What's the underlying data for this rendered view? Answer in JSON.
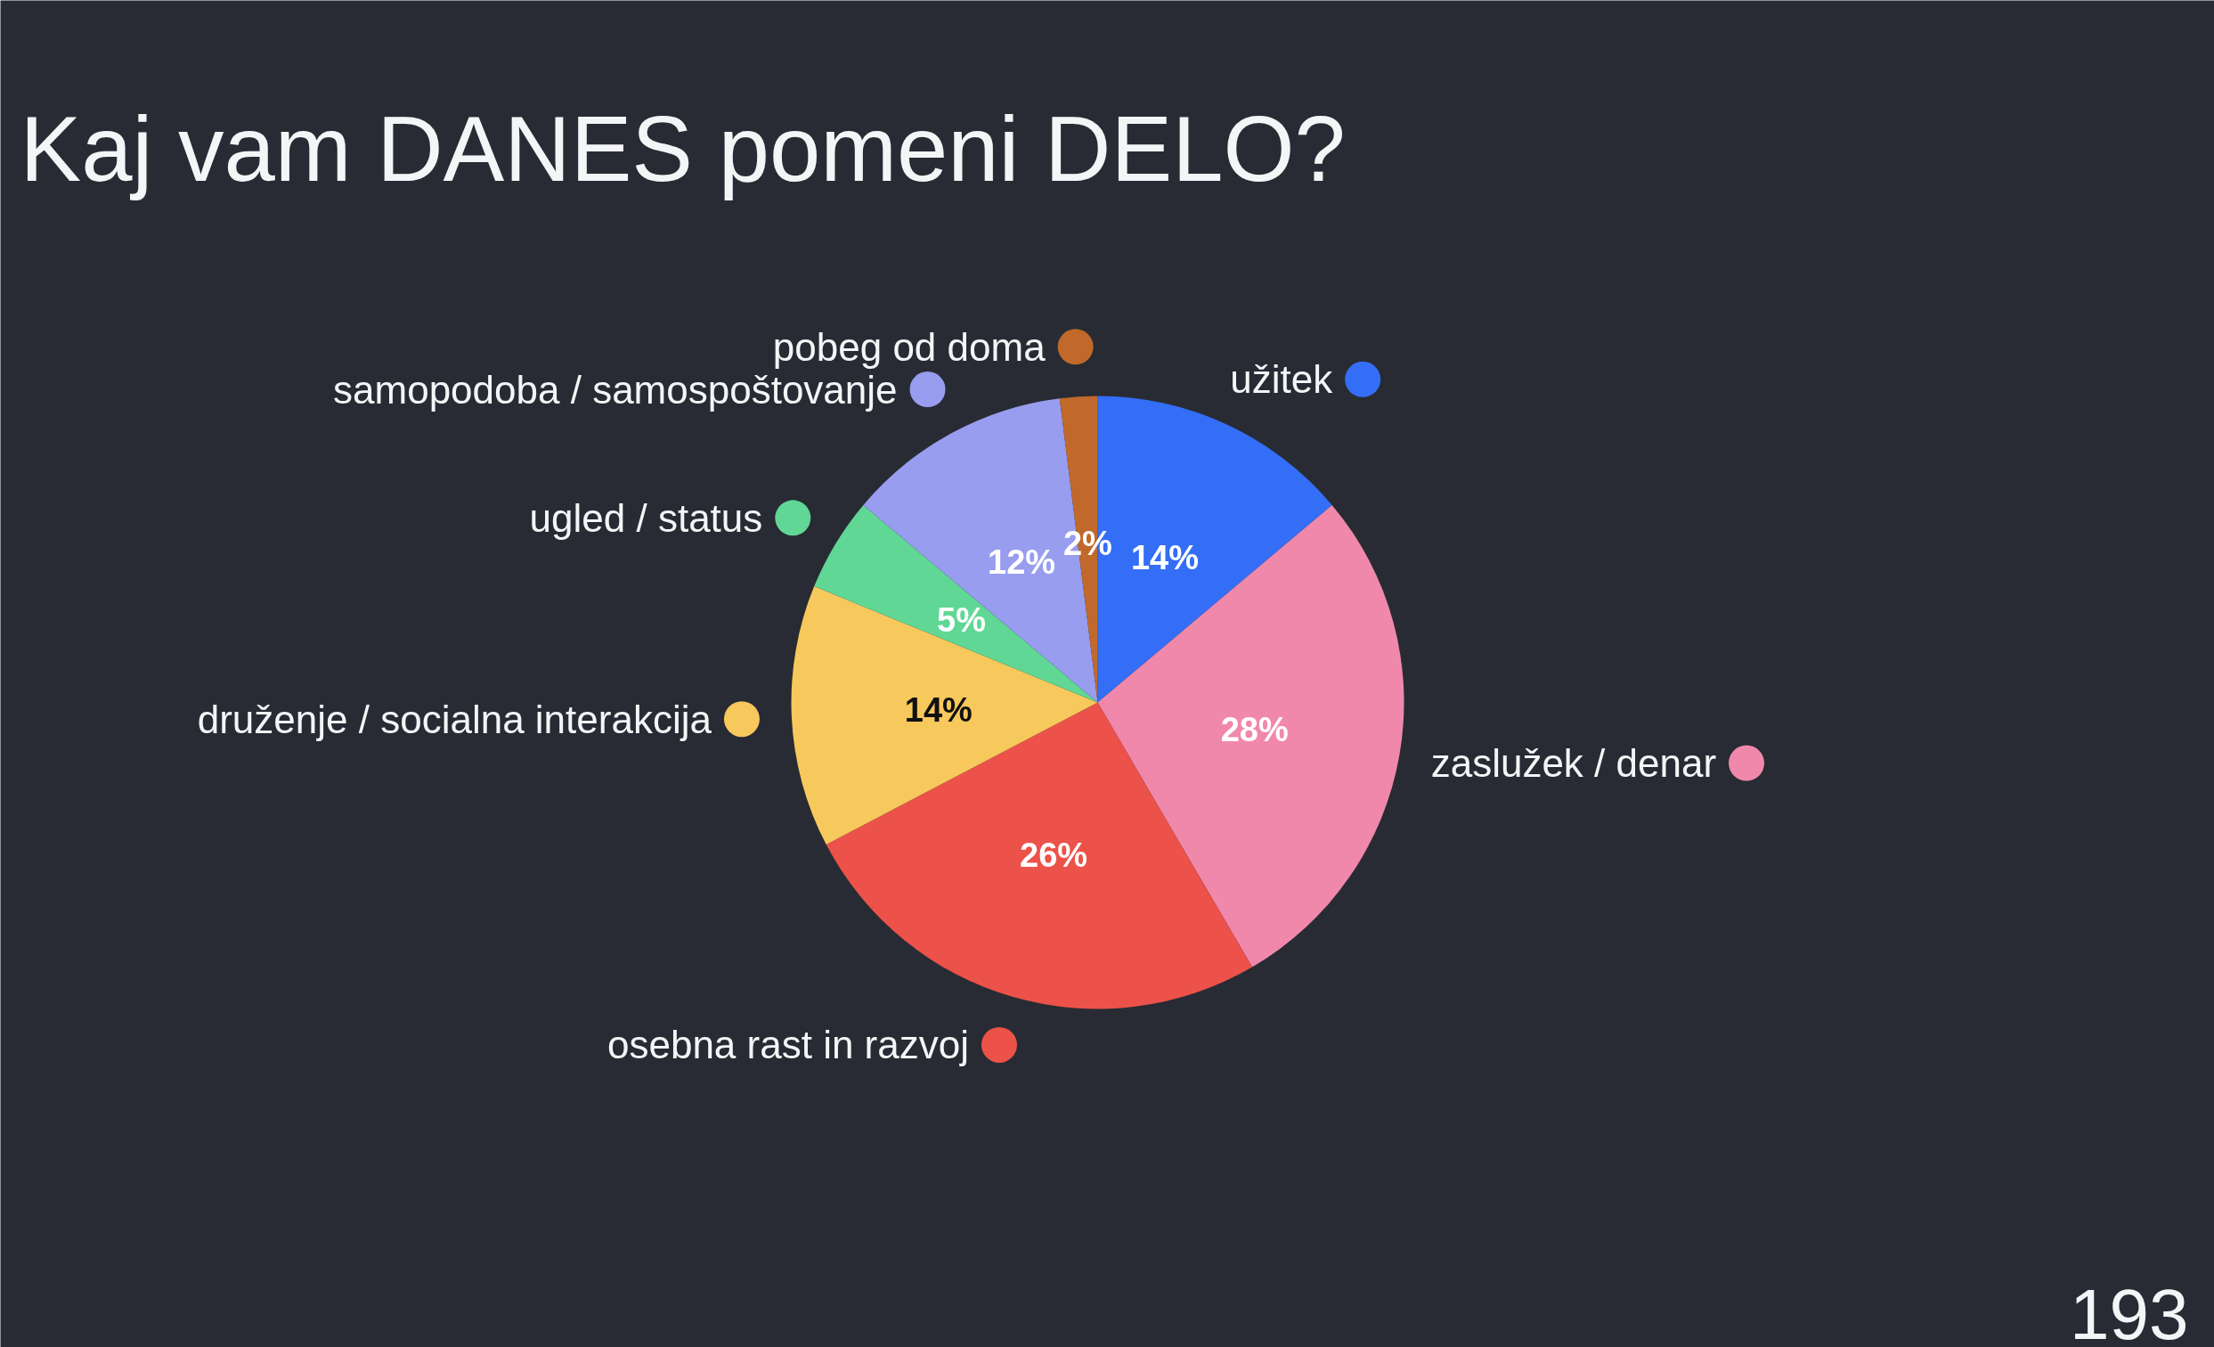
{
  "chart_data": {
    "type": "pie",
    "title": "Kaj vam DANES pomeni DELO?",
    "categories": [
      "užitek",
      "zaslužek / denar",
      "osebna rast in razvoj",
      "druženje / socialna interakcija",
      "ugled / status",
      "samopodoba / samospoštovanje",
      "pobeg od doma"
    ],
    "values": [
      14,
      28,
      26,
      14,
      5,
      12,
      2
    ],
    "colors": [
      "#346ef6",
      "#f088ab",
      "#ec5249",
      "#f7c85c",
      "#60d795",
      "#989def",
      "#c0692b"
    ],
    "value_labels": [
      "14%",
      "28%",
      "26%",
      "14%",
      "5%",
      "12%",
      "2%"
    ],
    "legend": "left",
    "annotations": [
      "193"
    ]
  }
}
